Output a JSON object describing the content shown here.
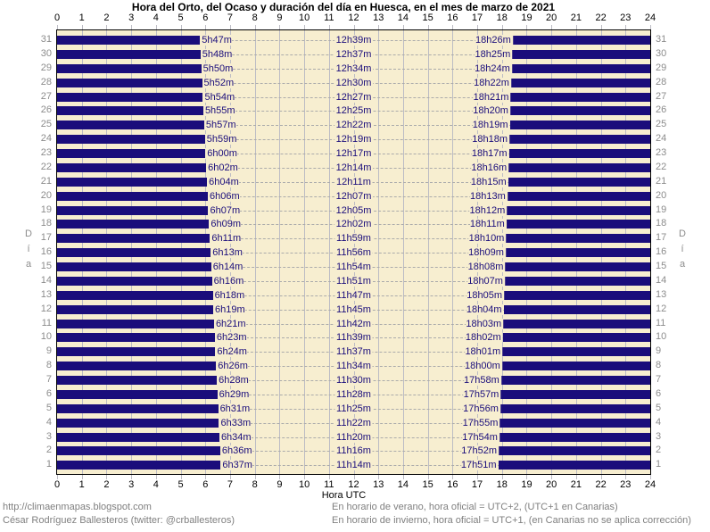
{
  "title": "Hora del Orto, del Ocaso y duración del día en Huesca, en el mes de marzo de 2021",
  "x_axis": {
    "label": "Hora UTC",
    "ticks": [
      "0",
      "1",
      "2",
      "3",
      "4",
      "5",
      "6",
      "7",
      "8",
      "9",
      "10",
      "11",
      "12",
      "13",
      "14",
      "15",
      "16",
      "17",
      "18",
      "19",
      "20",
      "21",
      "22",
      "23",
      "24"
    ]
  },
  "y_axis": {
    "label": "Día",
    "label_letters": [
      "D",
      "í",
      "a"
    ]
  },
  "footer": {
    "left_line1": "http://climaenmapas.blogspot.com",
    "left_line2": "César Rodríguez Ballesteros (twitter: @crballesteros)",
    "right_line1": "En horario de verano, hora oficial = UTC+2, (UTC+1 en Canarias)",
    "right_line2": "En horario de invierno, hora oficial = UTC+1, (en Canarias no se aplica corrección)"
  },
  "colors": {
    "night_bar": "#1A0D7B",
    "time_text": "#1A0D7B",
    "plot_background": "#F7EED0",
    "grid_line": "#BCBCC4",
    "dash_line": "#ABABAB",
    "border": "#000000",
    "axis_text": "#000000",
    "day_number_text": "#8C8C8C",
    "footer_text": "#7F7F7F",
    "page_background": "#FFFFFF"
  },
  "chart_data": {
    "type": "bar",
    "orientation": "horizontal",
    "description": "Each row is one day of March 2021. Dark bars are night (00:00 UTC to sunrise, and sunset to 24:00 UTC); the light band between them is daylight. Labels show sunrise time, day length, and sunset time.",
    "title": "Hora del Orto, del Ocaso y duración del día en Huesca, en el mes de marzo de 2021",
    "xlabel": "Hora UTC",
    "ylabel": "Día",
    "xlim": [
      0,
      24
    ],
    "grid": true,
    "rows": [
      {
        "day": 31,
        "sunrise": "5h47m",
        "daylength": "12h39m",
        "sunset": "18h26m"
      },
      {
        "day": 30,
        "sunrise": "5h48m",
        "daylength": "12h37m",
        "sunset": "18h25m"
      },
      {
        "day": 29,
        "sunrise": "5h50m",
        "daylength": "12h34m",
        "sunset": "18h24m"
      },
      {
        "day": 28,
        "sunrise": "5h52m",
        "daylength": "12h30m",
        "sunset": "18h22m"
      },
      {
        "day": 27,
        "sunrise": "5h54m",
        "daylength": "12h27m",
        "sunset": "18h21m"
      },
      {
        "day": 26,
        "sunrise": "5h55m",
        "daylength": "12h25m",
        "sunset": "18h20m"
      },
      {
        "day": 25,
        "sunrise": "5h57m",
        "daylength": "12h22m",
        "sunset": "18h19m"
      },
      {
        "day": 24,
        "sunrise": "5h59m",
        "daylength": "12h19m",
        "sunset": "18h18m"
      },
      {
        "day": 23,
        "sunrise": "6h00m",
        "daylength": "12h17m",
        "sunset": "18h17m"
      },
      {
        "day": 22,
        "sunrise": "6h02m",
        "daylength": "12h14m",
        "sunset": "18h16m"
      },
      {
        "day": 21,
        "sunrise": "6h04m",
        "daylength": "12h11m",
        "sunset": "18h15m"
      },
      {
        "day": 20,
        "sunrise": "6h06m",
        "daylength": "12h07m",
        "sunset": "18h13m"
      },
      {
        "day": 19,
        "sunrise": "6h07m",
        "daylength": "12h05m",
        "sunset": "18h12m"
      },
      {
        "day": 18,
        "sunrise": "6h09m",
        "daylength": "12h02m",
        "sunset": "18h11m"
      },
      {
        "day": 17,
        "sunrise": "6h11m",
        "daylength": "11h59m",
        "sunset": "18h10m"
      },
      {
        "day": 16,
        "sunrise": "6h13m",
        "daylength": "11h56m",
        "sunset": "18h09m"
      },
      {
        "day": 15,
        "sunrise": "6h14m",
        "daylength": "11h54m",
        "sunset": "18h08m"
      },
      {
        "day": 14,
        "sunrise": "6h16m",
        "daylength": "11h51m",
        "sunset": "18h07m"
      },
      {
        "day": 13,
        "sunrise": "6h18m",
        "daylength": "11h47m",
        "sunset": "18h05m"
      },
      {
        "day": 12,
        "sunrise": "6h19m",
        "daylength": "11h45m",
        "sunset": "18h04m"
      },
      {
        "day": 11,
        "sunrise": "6h21m",
        "daylength": "11h42m",
        "sunset": "18h03m"
      },
      {
        "day": 10,
        "sunrise": "6h23m",
        "daylength": "11h39m",
        "sunset": "18h02m"
      },
      {
        "day": 9,
        "sunrise": "6h24m",
        "daylength": "11h37m",
        "sunset": "18h01m"
      },
      {
        "day": 8,
        "sunrise": "6h26m",
        "daylength": "11h34m",
        "sunset": "18h00m"
      },
      {
        "day": 7,
        "sunrise": "6h28m",
        "daylength": "11h30m",
        "sunset": "17h58m"
      },
      {
        "day": 6,
        "sunrise": "6h29m",
        "daylength": "11h28m",
        "sunset": "17h57m"
      },
      {
        "day": 5,
        "sunrise": "6h31m",
        "daylength": "11h25m",
        "sunset": "17h56m"
      },
      {
        "day": 4,
        "sunrise": "6h33m",
        "daylength": "11h22m",
        "sunset": "17h55m"
      },
      {
        "day": 3,
        "sunrise": "6h34m",
        "daylength": "11h20m",
        "sunset": "17h54m"
      },
      {
        "day": 2,
        "sunrise": "6h36m",
        "daylength": "11h16m",
        "sunset": "17h52m"
      },
      {
        "day": 1,
        "sunrise": "6h37m",
        "daylength": "11h14m",
        "sunset": "17h51m"
      }
    ]
  }
}
